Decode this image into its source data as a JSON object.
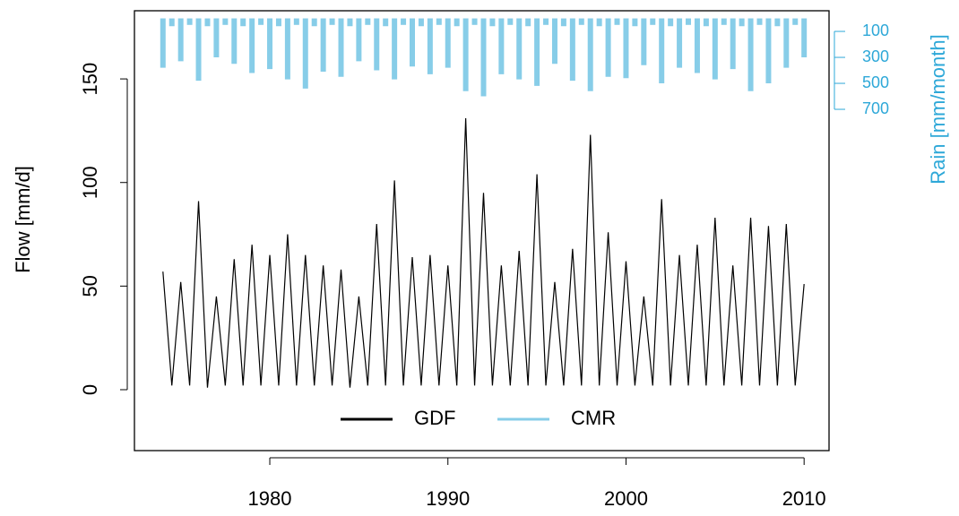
{
  "chart_data": {
    "type": "line",
    "x": [
      1974,
      1974.5,
      1975,
      1975.5,
      1976,
      1976.5,
      1977,
      1977.5,
      1978,
      1978.5,
      1979,
      1979.5,
      1980,
      1980.5,
      1981,
      1981.5,
      1982,
      1982.5,
      1983,
      1983.5,
      1984,
      1984.5,
      1985,
      1985.5,
      1986,
      1986.5,
      1987,
      1987.5,
      1988,
      1988.5,
      1989,
      1989.5,
      1990,
      1990.5,
      1991,
      1991.5,
      1992,
      1992.5,
      1993,
      1993.5,
      1994,
      1994.5,
      1995,
      1995.5,
      1996,
      1996.5,
      1997,
      1997.5,
      1998,
      1998.5,
      1999,
      1999.5,
      2000,
      2000.5,
      2001,
      2001.5,
      2002,
      2002.5,
      2003,
      2003.5,
      2004,
      2004.5,
      2005,
      2005.5,
      2006,
      2006.5,
      2007,
      2007.5,
      2008,
      2008.5,
      2009,
      2009.5,
      2010
    ],
    "series": [
      {
        "name": "GDF",
        "color": "#000000",
        "values": [
          57,
          2,
          52,
          2,
          91,
          1,
          45,
          2,
          63,
          2,
          70,
          2,
          65,
          2,
          75,
          2,
          65,
          2,
          60,
          2,
          58,
          1,
          45,
          2,
          80,
          2,
          101,
          2,
          64,
          2,
          65,
          2,
          60,
          2,
          131,
          2,
          95,
          2,
          60,
          2,
          67,
          2,
          104,
          2,
          52,
          2,
          68,
          2,
          123,
          2,
          76,
          2,
          62,
          2,
          45,
          2,
          92,
          2,
          65,
          2,
          70,
          2,
          83,
          2,
          60,
          2,
          83,
          2,
          79,
          2,
          80,
          2,
          51
        ]
      },
      {
        "name": "CMR",
        "color": "#87cde8",
        "axis": "y2",
        "values": [
          380,
          60,
          330,
          50,
          480,
          60,
          300,
          50,
          350,
          60,
          420,
          50,
          390,
          60,
          470,
          50,
          540,
          60,
          410,
          50,
          450,
          60,
          330,
          50,
          400,
          60,
          470,
          50,
          370,
          60,
          430,
          50,
          380,
          60,
          560,
          50,
          600,
          60,
          430,
          50,
          470,
          60,
          520,
          50,
          350,
          60,
          480,
          50,
          560,
          60,
          450,
          50,
          460,
          60,
          360,
          50,
          500,
          60,
          380,
          50,
          420,
          60,
          470,
          50,
          390,
          60,
          560,
          50,
          500,
          60,
          380,
          50,
          300
        ]
      }
    ],
    "xlim": [
      1972.4,
      2011.4
    ],
    "xticks": [
      1980,
      1990,
      2000,
      2010
    ],
    "ylim": [
      -29.4,
      182.9
    ],
    "yticks": [
      0,
      50,
      100,
      150
    ],
    "y2lim": [
      3328,
      -59
    ],
    "y2ticks": [
      100,
      300,
      500,
      700
    ],
    "y2_color": "#2ea8d8",
    "ylabel": "Flow [mm/d]",
    "y2label": "Rain [mm/month]",
    "legend": "bottom"
  }
}
